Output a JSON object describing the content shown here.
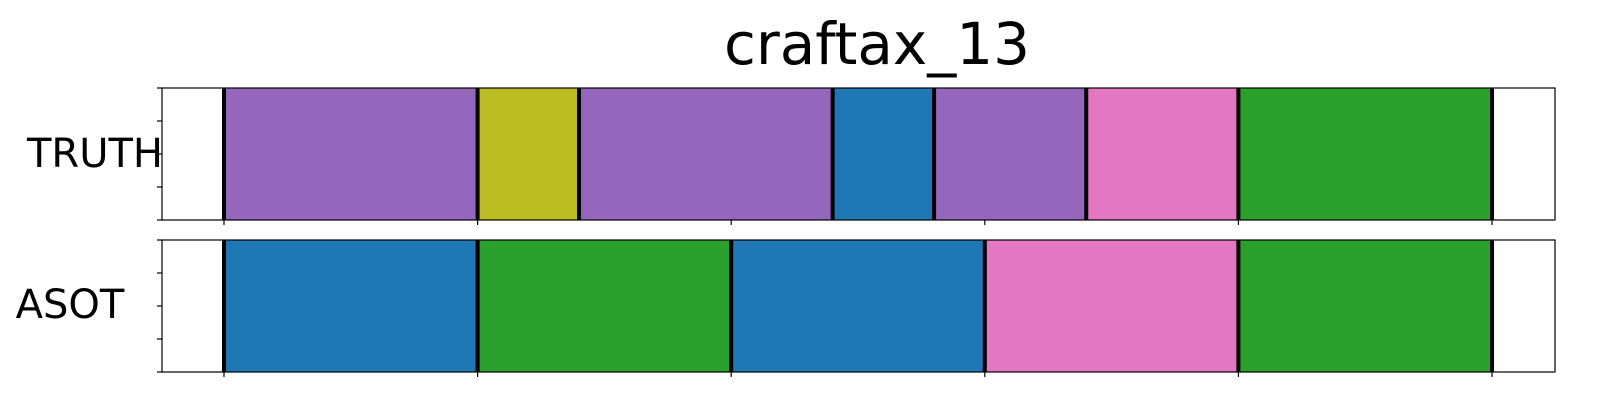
{
  "chart_data": {
    "type": "segmentation-timeline",
    "title": "craftax_13",
    "x_range": [
      0,
      100
    ],
    "tick_positions": [
      0,
      20,
      40,
      60,
      80,
      100
    ],
    "rows": [
      {
        "label": "TRUTH",
        "segments": [
          {
            "start": 0,
            "end": 20,
            "color": "#9467bd"
          },
          {
            "start": 20,
            "end": 28,
            "color": "#bcbd22"
          },
          {
            "start": 28,
            "end": 48,
            "color": "#9467bd"
          },
          {
            "start": 48,
            "end": 56,
            "color": "#1f77b4"
          },
          {
            "start": 56,
            "end": 68,
            "color": "#9467bd"
          },
          {
            "start": 68,
            "end": 80,
            "color": "#e377c2"
          },
          {
            "start": 80,
            "end": 100,
            "color": "#2ca02c"
          }
        ]
      },
      {
        "label": "ASOT",
        "segments": [
          {
            "start": 0,
            "end": 20,
            "color": "#1f77b4"
          },
          {
            "start": 20,
            "end": 40,
            "color": "#2ca02c"
          },
          {
            "start": 40,
            "end": 60,
            "color": "#1f77b4"
          },
          {
            "start": 60,
            "end": 80,
            "color": "#e377c2"
          },
          {
            "start": 80,
            "end": 100,
            "color": "#2ca02c"
          }
        ]
      }
    ]
  }
}
